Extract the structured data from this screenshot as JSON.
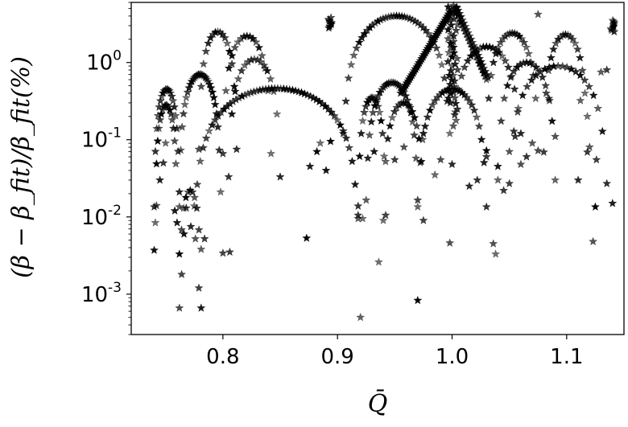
{
  "chart_data": {
    "type": "scatter",
    "title": "",
    "xlabel": "Q̄",
    "ylabel": "(β − β_fit)/β_fit(%)",
    "x_ticks": [
      0.8,
      0.9,
      1.0,
      1.1
    ],
    "x_tick_labels": [
      "0.8",
      "0.9",
      "1.0",
      "1.1"
    ],
    "y_ticks": [
      0.001,
      0.01,
      0.1,
      1
    ],
    "y_tick_labels": [
      {
        "base": "10",
        "exp": "-3"
      },
      {
        "base": "10",
        "exp": "-2"
      },
      {
        "base": "10",
        "exp": "-1"
      },
      {
        "base": "10",
        "exp": "0"
      }
    ],
    "xlim": [
      0.72,
      1.15
    ],
    "ylim": [
      0.0003,
      6.0
    ],
    "y_scale": "log",
    "grid": false,
    "legend": "none",
    "marker": "star",
    "marker_color": "#000000",
    "arches": [
      {
        "x0": 0.74,
        "x1": 0.762,
        "peak": 0.45,
        "n": 20
      },
      {
        "x0": 0.741,
        "x1": 0.76,
        "peak": 0.28,
        "n": 18
      },
      {
        "x0": 0.762,
        "x1": 0.781,
        "peak": 0.022,
        "n": 10
      },
      {
        "x0": 0.762,
        "x1": 0.798,
        "peak": 0.7,
        "n": 30
      },
      {
        "x0": 0.779,
        "x1": 0.812,
        "peak": 2.5,
        "n": 16
      },
      {
        "x0": 0.8,
        "x1": 0.842,
        "peak": 2.2,
        "n": 16
      },
      {
        "x0": 0.805,
        "x1": 0.85,
        "peak": 1.1,
        "n": 16
      },
      {
        "x0": 0.775,
        "x1": 0.918,
        "peak": 0.46,
        "n": 55
      },
      {
        "x0": 0.918,
        "x1": 0.942,
        "peak": 0.35,
        "n": 18
      },
      {
        "x0": 0.925,
        "x1": 0.97,
        "peak": 0.55,
        "n": 30
      },
      {
        "x0": 0.94,
        "x1": 0.975,
        "peak": 0.3,
        "n": 18
      },
      {
        "x0": 0.97,
        "x1": 1.03,
        "peak": 0.45,
        "n": 28
      },
      {
        "x0": 0.905,
        "x1": 0.998,
        "peak": 4.0,
        "n": 40
      },
      {
        "x0": 1.0,
        "x1": 1.06,
        "peak": 1.6,
        "n": 22
      },
      {
        "x0": 1.03,
        "x1": 1.075,
        "peak": 2.4,
        "n": 22
      },
      {
        "x0": 1.04,
        "x1": 1.09,
        "peak": 1.0,
        "n": 18
      },
      {
        "x0": 1.08,
        "x1": 1.118,
        "peak": 2.3,
        "n": 18
      },
      {
        "x0": 1.05,
        "x1": 1.135,
        "peak": 0.9,
        "n": 22
      }
    ],
    "lines": [
      {
        "x0": 0.955,
        "y0": 0.4,
        "x1": 0.998,
        "y1": 4.5,
        "n": 40
      },
      {
        "x0": 1.0,
        "y0": 6.0,
        "x1": 1.03,
        "y1": 0.6,
        "n": 24
      }
    ],
    "columns": [
      {
        "x": 0.998,
        "y_lo": 0.3,
        "y_hi": 6.0,
        "n": 22
      },
      {
        "x": 1.003,
        "y_lo": 0.15,
        "y_hi": 6.0,
        "n": 22
      },
      {
        "x": 0.894,
        "y_lo": 2.8,
        "y_hi": 3.8,
        "n": 6
      },
      {
        "x": 1.14,
        "y_lo": 2.5,
        "y_hi": 3.5,
        "n": 8
      }
    ],
    "points": [
      [
        0.74,
        0.0037
      ],
      [
        0.742,
        0.014
      ],
      [
        0.745,
        0.03
      ],
      [
        0.748,
        0.05
      ],
      [
        0.75,
        0.09
      ],
      [
        0.758,
        0.012
      ],
      [
        0.762,
        0.0033
      ],
      [
        0.764,
        0.0018
      ],
      [
        0.766,
        0.006
      ],
      [
        0.768,
        0.013
      ],
      [
        0.772,
        0.0075
      ],
      [
        0.776,
        0.0052
      ],
      [
        0.779,
        0.0012
      ],
      [
        0.781,
        0.0038
      ],
      [
        0.784,
        0.0052
      ],
      [
        0.8,
        0.0034
      ],
      [
        0.806,
        0.0035
      ],
      [
        0.873,
        0.0053
      ],
      [
        0.876,
        0.045
      ],
      [
        0.882,
        0.07
      ],
      [
        0.885,
        0.09
      ],
      [
        0.89,
        0.04
      ],
      [
        0.894,
        0.095
      ],
      [
        0.918,
        0.0095
      ],
      [
        0.92,
        0.0005
      ],
      [
        0.922,
        0.0095
      ],
      [
        0.932,
        0.07
      ],
      [
        0.936,
        0.0026
      ],
      [
        0.95,
        0.055
      ],
      [
        0.958,
        0.08
      ],
      [
        0.97,
        0.00083
      ],
      [
        0.975,
        0.12
      ],
      [
        0.985,
        0.035
      ],
      [
        0.99,
        0.055
      ],
      [
        0.998,
        0.0046
      ],
      [
        1.015,
        0.025
      ],
      [
        1.022,
        0.03
      ],
      [
        1.03,
        0.06
      ],
      [
        1.036,
        0.0045
      ],
      [
        1.038,
        0.0033
      ],
      [
        1.04,
        0.045
      ],
      [
        1.045,
        0.022
      ],
      [
        1.05,
        0.07
      ],
      [
        1.055,
        0.11
      ],
      [
        1.06,
        0.12
      ],
      [
        1.065,
        0.06
      ],
      [
        1.07,
        0.09
      ],
      [
        1.075,
        4.2
      ],
      [
        1.085,
        0.32
      ],
      [
        1.09,
        0.11
      ],
      [
        1.11,
        0.03
      ],
      [
        1.112,
        0.32
      ],
      [
        1.118,
        0.2
      ],
      [
        1.12,
        0.08
      ],
      [
        1.123,
        0.0048
      ],
      [
        1.125,
        0.0135
      ],
      [
        1.126,
        0.055
      ],
      [
        1.13,
        0.75
      ],
      [
        1.135,
        0.8
      ],
      [
        1.14,
        0.015
      ]
    ]
  }
}
